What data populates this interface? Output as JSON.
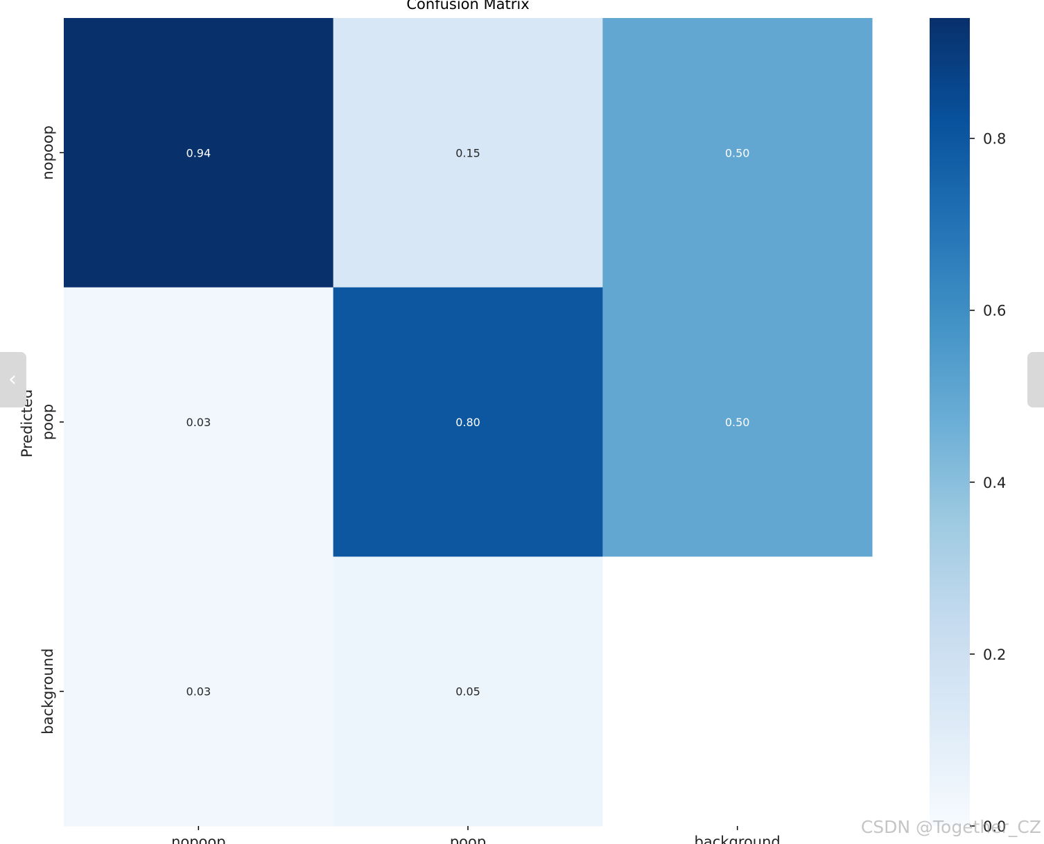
{
  "chart_data": {
    "type": "heatmap",
    "title": "Confusion Matrix",
    "ylabel": "Predicted",
    "xlabel": "",
    "x_categories": [
      "nopoop",
      "poop",
      "background"
    ],
    "y_categories": [
      "nopoop",
      "poop",
      "background"
    ],
    "values": [
      [
        0.94,
        0.15,
        0.5
      ],
      [
        0.03,
        0.8,
        0.5
      ],
      [
        0.03,
        0.05,
        null
      ]
    ],
    "value_labels": [
      [
        "0.94",
        "0.15",
        "0.50"
      ],
      [
        "0.03",
        "0.80",
        "0.50"
      ],
      [
        "0.03",
        "0.05",
        ""
      ]
    ],
    "colormap": "Blues",
    "colorbar": {
      "range": [
        0.0,
        0.94
      ],
      "ticks": [
        0.0,
        0.2,
        0.4,
        0.6,
        0.8
      ],
      "tick_labels": [
        "0.0",
        "0.2",
        "0.4",
        "0.6",
        "0.8"
      ]
    }
  },
  "nav": {
    "prev_icon": "chevron-left-icon",
    "prev_glyph": "‹",
    "next_icon": "chevron-right-icon"
  },
  "watermark": "CSDN @Together_CZ"
}
